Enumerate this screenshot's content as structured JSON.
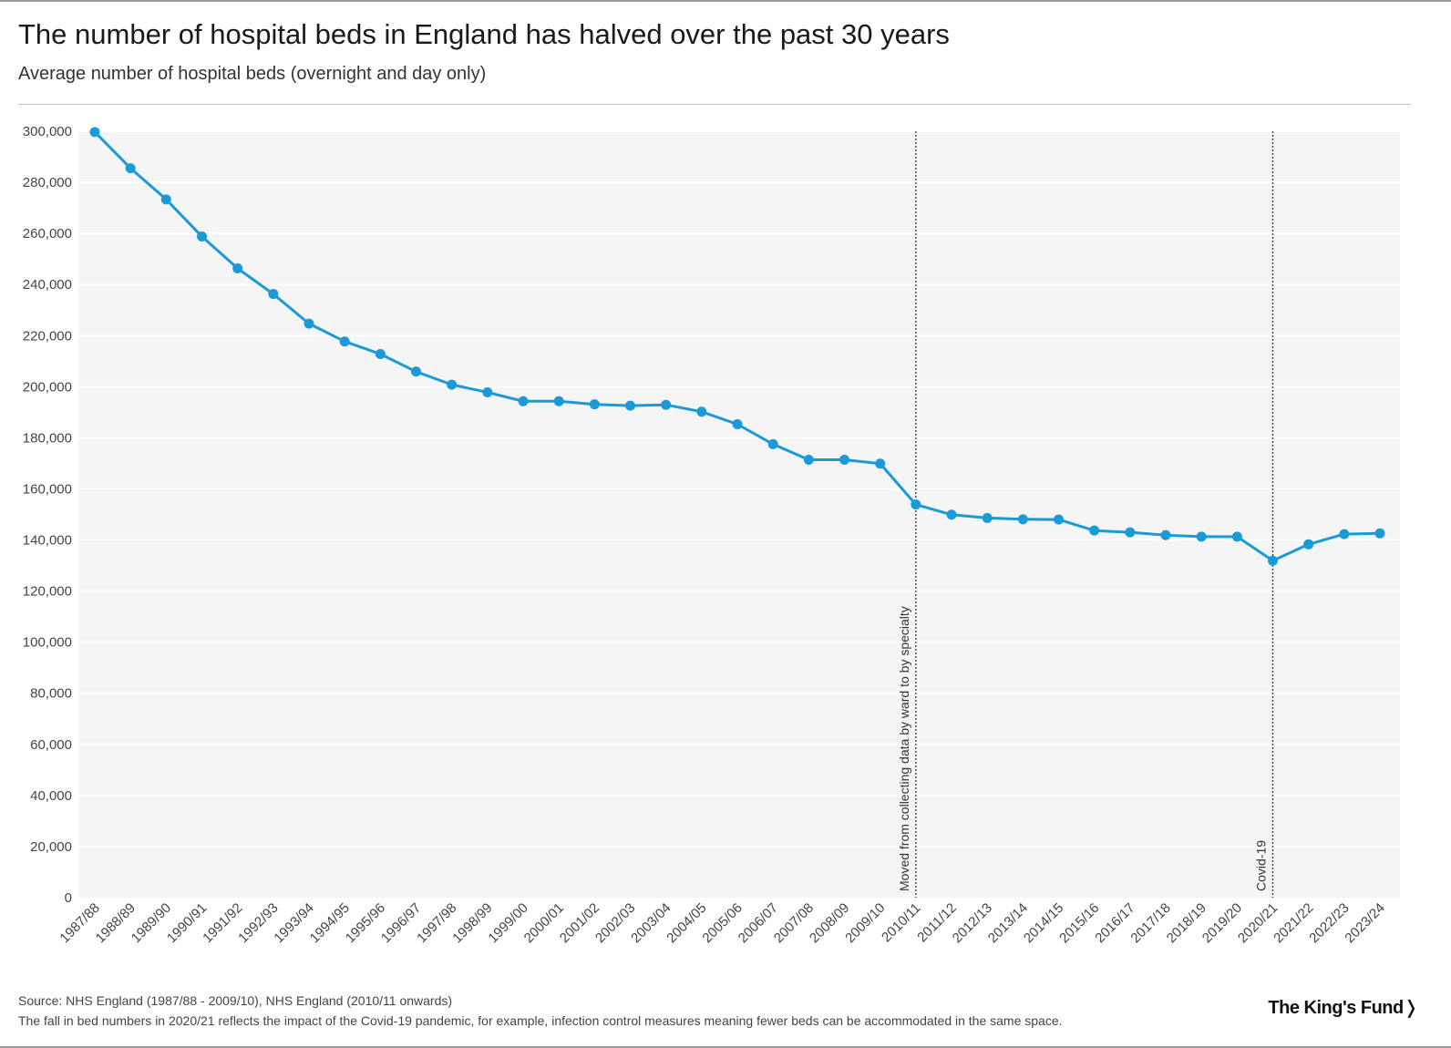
{
  "header": {
    "title": "The number of hospital beds in England has halved over the past 30 years",
    "subtitle": "Average number of hospital beds (overnight and day only)"
  },
  "footer": {
    "source": "Source: NHS England (1987/88 - 2009/10), NHS England (2010/11 onwards)",
    "note": "The fall in bed numbers in 2020/21 reflects the impact of the Covid-19 pandemic, for example, infection control measures meaning fewer beds can be accommodated in the same space.",
    "logo": "The King's Fund❭"
  },
  "colors": {
    "line": "#1a9ad6",
    "plot_bg": "#f5f5f5",
    "grid": "#ffffff",
    "text": "#444444"
  },
  "chart_data": {
    "type": "line",
    "title": "The number of hospital beds in England has halved over the past 30 years",
    "subtitle": "Average number of hospital beds (overnight and day only)",
    "xlabel": "",
    "ylabel": "",
    "ylim": [
      0,
      300000
    ],
    "yticks": [
      0,
      20000,
      40000,
      60000,
      80000,
      100000,
      120000,
      140000,
      160000,
      180000,
      200000,
      220000,
      240000,
      260000,
      280000,
      300000
    ],
    "ytick_labels": [
      "0",
      "20,000",
      "40,000",
      "60,000",
      "80,000",
      "100,000",
      "120,000",
      "140,000",
      "160,000",
      "180,000",
      "200,000",
      "220,000",
      "240,000",
      "260,000",
      "280,000",
      "300,000"
    ],
    "grid": true,
    "categories": [
      "1987/88",
      "1988/89",
      "1989/90",
      "1990/91",
      "1991/92",
      "1992/93",
      "1993/94",
      "1994/95",
      "1995/96",
      "1996/97",
      "1997/98",
      "1998/99",
      "1999/00",
      "2000/01",
      "2001/02",
      "2002/03",
      "2003/04",
      "2004/05",
      "2005/06",
      "2006/07",
      "2007/08",
      "2008/09",
      "2009/10",
      "2010/11",
      "2011/12",
      "2012/13",
      "2013/14",
      "2014/15",
      "2015/16",
      "2016/17",
      "2017/18",
      "2018/19",
      "2019/20",
      "2020/21",
      "2021/22",
      "2022/23",
      "2023/24"
    ],
    "series": [
      {
        "name": "Average number of hospital beds",
        "values": [
          299700,
          285500,
          273300,
          258800,
          246300,
          236300,
          224700,
          217700,
          212800,
          205900,
          200800,
          197800,
          194300,
          194300,
          193100,
          192600,
          192900,
          190200,
          185300,
          177500,
          171400,
          171400,
          169900,
          153900,
          149900,
          148600,
          148100,
          148000,
          143700,
          143000,
          141900,
          141300,
          141300,
          131900,
          138300,
          142300,
          142600
        ]
      }
    ],
    "annotations": [
      {
        "category": "2010/11",
        "label": "Moved from collecting data by ward to by specialty"
      },
      {
        "category": "2020/21",
        "label": "Covid-19"
      }
    ]
  }
}
